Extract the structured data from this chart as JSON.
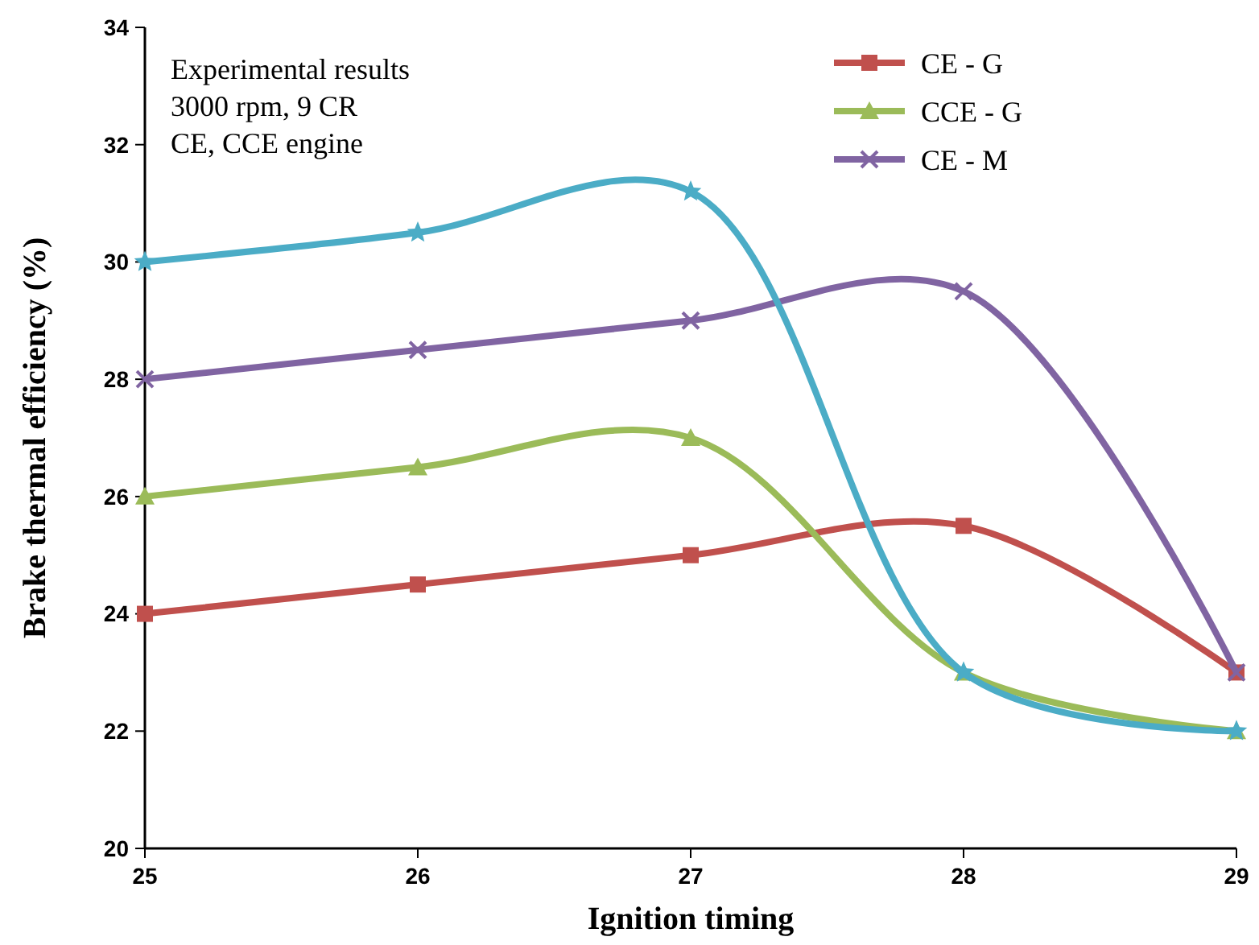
{
  "chart_data": {
    "type": "line",
    "xlabel": "Ignition timing",
    "ylabel": "Brake thermal efficiency (%)",
    "annotations": [
      "Experimental results",
      "3000 rpm, 9 CR",
      "CE, CCE engine"
    ],
    "x": [
      25,
      26,
      27,
      28,
      29
    ],
    "xlim": [
      25,
      29
    ],
    "xticks": [
      25,
      26,
      27,
      28,
      29
    ],
    "ylim": [
      20,
      34
    ],
    "yticks": [
      20,
      22,
      24,
      26,
      28,
      30,
      32,
      34
    ],
    "grid": false,
    "legend": "top right",
    "series": [
      {
        "name": "CE - G",
        "color": "#c0504d",
        "marker": "square",
        "values": [
          24,
          24.5,
          25,
          25.5,
          23
        ]
      },
      {
        "name": "CCE - G",
        "color": "#9bbb59",
        "marker": "triangle",
        "values": [
          26,
          26.5,
          27,
          23,
          22
        ]
      },
      {
        "name": "CE - M",
        "color": "#8064a2",
        "marker": "cross",
        "values": [
          28,
          28.5,
          29,
          29.5,
          23
        ]
      },
      {
        "color": "#4bacc6",
        "marker": "star",
        "values": [
          30,
          30.5,
          31.2,
          23,
          22
        ]
      }
    ]
  }
}
